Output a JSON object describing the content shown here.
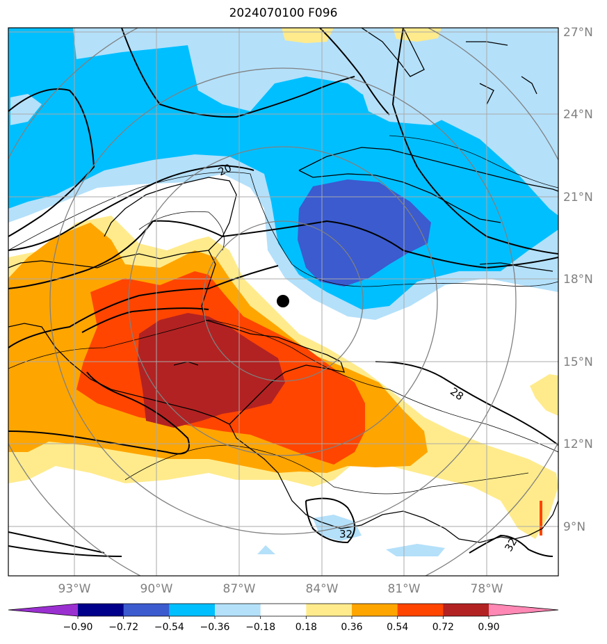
{
  "title": "2024070100 F096",
  "map": {
    "lon_ticks": [
      "93°W",
      "90°W",
      "87°W",
      "84°W",
      "81°W",
      "78°W"
    ],
    "lat_ticks": [
      "27°N",
      "24°N",
      "21°N",
      "18°N",
      "15°N",
      "12°N",
      "9°N"
    ],
    "contour_labels": [
      "20",
      "28",
      "32",
      "32"
    ],
    "marker": "storm-center-dot"
  },
  "colorbar": {
    "ticks": [
      "−0.90",
      "−0.72",
      "−0.54",
      "−0.36",
      "−0.18",
      "0.18",
      "0.36",
      "0.54",
      "0.72",
      "0.90"
    ],
    "colors": [
      "#9b30d0",
      "#00008b",
      "#3b5bcf",
      "#00bfff",
      "#b4e0fa",
      "#ffffff",
      "#ffeb8c",
      "#ffa500",
      "#ff4500",
      "#b22222",
      "#ff88b4"
    ]
  },
  "colors": {
    "deep_blue": "#3b5bcf",
    "blue": "#00bfff",
    "light_blue": "#b4e0fa",
    "yellow": "#ffeb8c",
    "orange": "#ffa500",
    "red_orange": "#ff4500",
    "dark_red": "#b22222",
    "grid": "#aaaaaa",
    "ring": "#808080"
  }
}
